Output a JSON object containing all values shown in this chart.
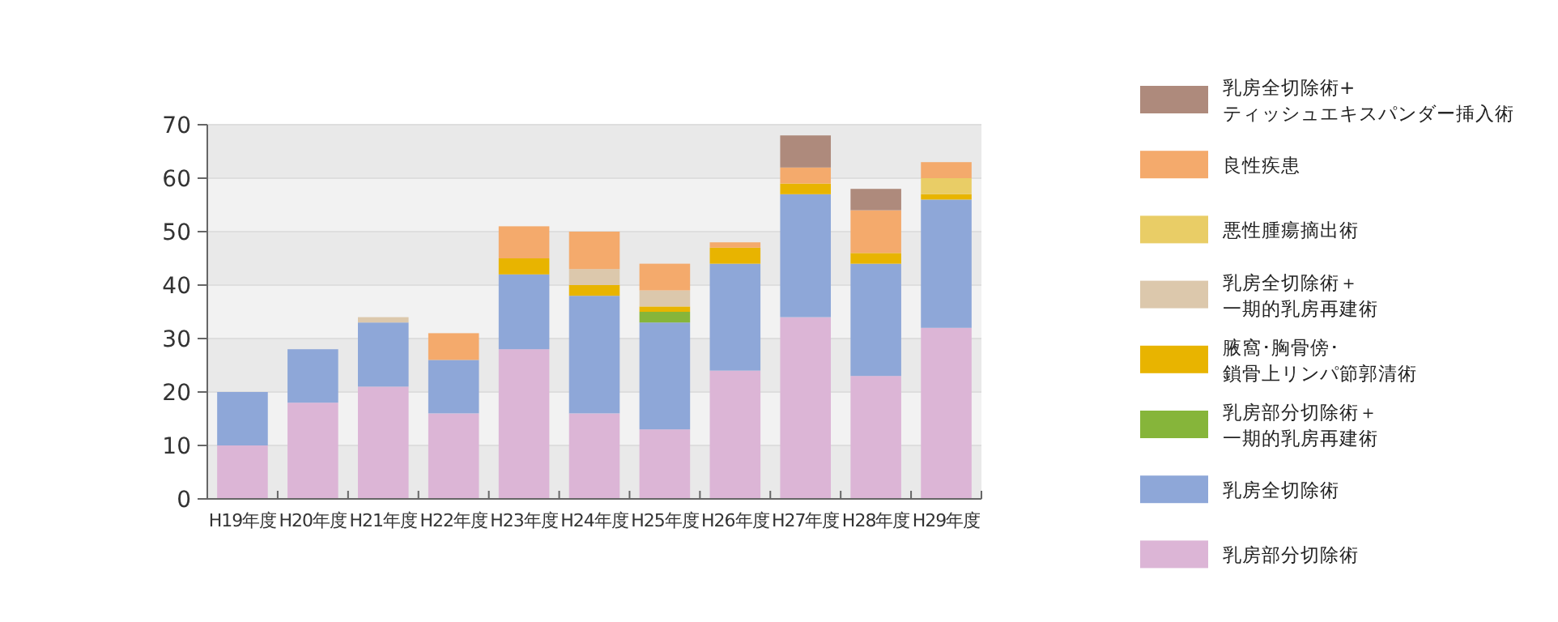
{
  "chart_data": {
    "type": "bar",
    "stacked": true,
    "grid": "y",
    "legend": "right",
    "categories": [
      "H19年度",
      "H20年度",
      "H21年度",
      "H22年度",
      "H23年度",
      "H24年度",
      "H25年度",
      "H26年度",
      "H27年度",
      "H28年度",
      "H29年度"
    ],
    "ylim": [
      0,
      70
    ],
    "yticks": [
      0,
      10,
      20,
      30,
      40,
      50,
      60,
      70
    ],
    "series": [
      {
        "name": "乳房部分切除術",
        "color": "#dcb5d6",
        "values": [
          10,
          18,
          21,
          16,
          28,
          16,
          13,
          24,
          34,
          23,
          32
        ]
      },
      {
        "name": "乳房全切除術",
        "color": "#8ea7d8",
        "values": [
          10,
          10,
          12,
          10,
          14,
          22,
          20,
          20,
          23,
          21,
          24
        ]
      },
      {
        "name": "乳房部分切除術＋一期的乳房再建術",
        "color": "#86b53a",
        "values": [
          null,
          null,
          null,
          null,
          null,
          null,
          2,
          null,
          null,
          null,
          null
        ]
      },
      {
        "name": "腋窩･胸骨傍･鎖骨上リンパ節郭清術",
        "color": "#e8b400",
        "values": [
          null,
          null,
          null,
          null,
          3,
          2,
          1,
          3,
          2,
          2,
          1
        ]
      },
      {
        "name": "乳房全切除術＋一期的乳房再建術",
        "color": "#dcc8ac",
        "values": [
          null,
          null,
          1,
          null,
          null,
          3,
          3,
          null,
          null,
          null,
          null
        ]
      },
      {
        "name": "悪性腫瘍摘出術",
        "color": "#e9cd66",
        "values": [
          null,
          null,
          null,
          null,
          null,
          null,
          null,
          null,
          null,
          null,
          3
        ]
      },
      {
        "name": "良性疾患",
        "color": "#f4aa6c",
        "values": [
          null,
          null,
          null,
          5,
          6,
          7,
          5,
          1,
          3,
          8,
          3
        ]
      },
      {
        "name": "乳房全切除術+ティッシュエキスパンダー挿入術",
        "color": "#ae8a7c",
        "values": [
          null,
          null,
          null,
          null,
          null,
          null,
          null,
          null,
          6,
          4,
          null
        ]
      }
    ]
  }
}
